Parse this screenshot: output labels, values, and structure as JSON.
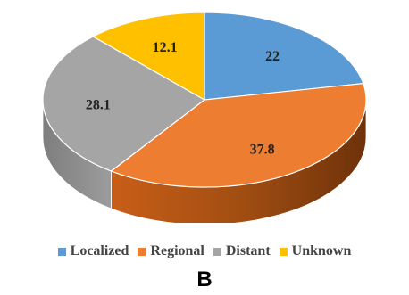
{
  "chart_data": {
    "type": "pie",
    "style": "3d",
    "categories": [
      "Localized",
      "Regional",
      "Distant",
      "Unknown"
    ],
    "values": [
      22,
      37.8,
      28.1,
      12.1
    ],
    "value_labels": [
      "22",
      "37.8",
      "28.1",
      "12.1"
    ],
    "colors": [
      "#5B9BD5",
      "#ED7D31",
      "#A5A5A5",
      "#FFC000"
    ],
    "legend_position": "bottom"
  },
  "panel_label": "B"
}
